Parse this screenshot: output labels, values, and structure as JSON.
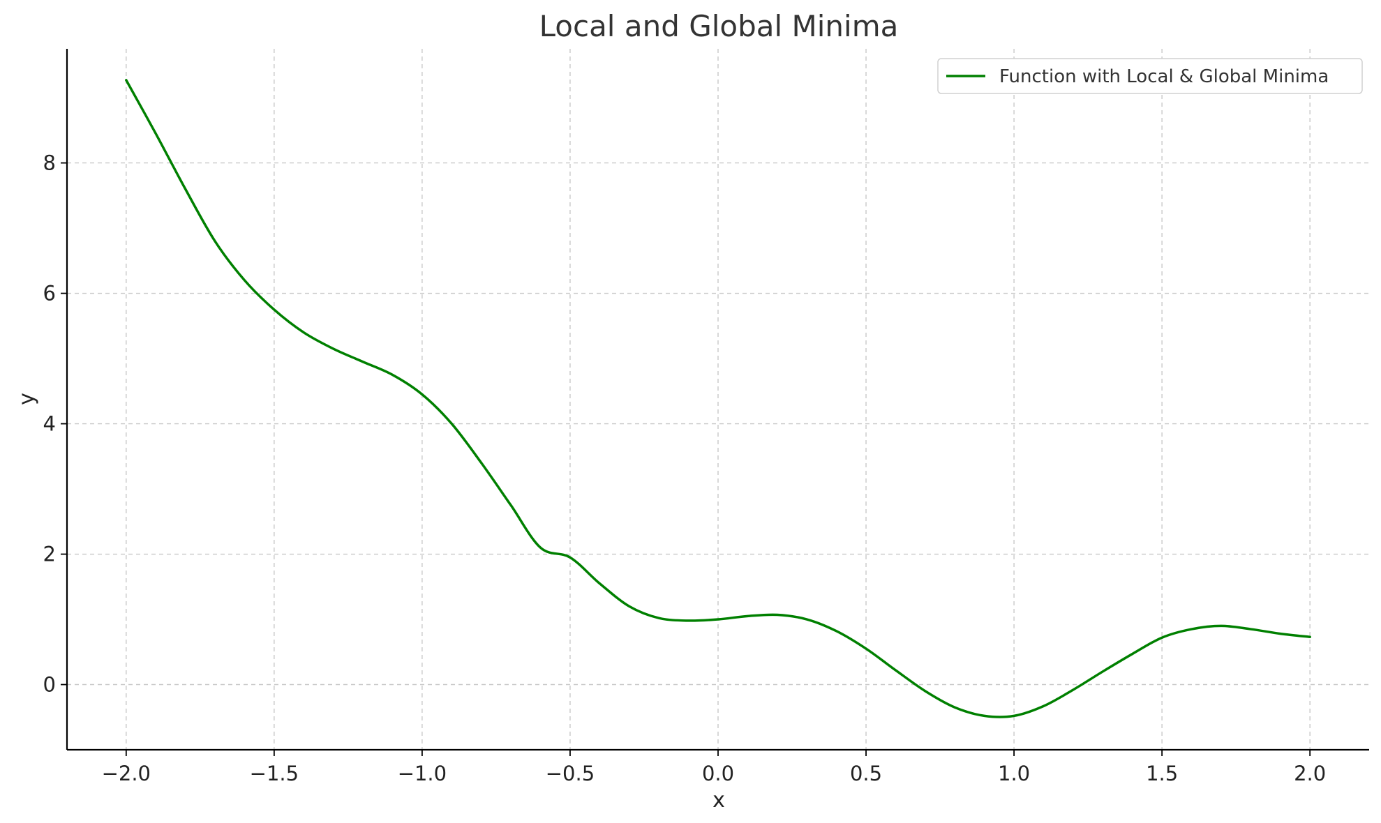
{
  "chart_data": {
    "type": "line",
    "title": "Local and Global Minima",
    "xlabel": "x",
    "ylabel": "y",
    "xlim": [
      -2.2,
      2.2
    ],
    "ylim": [
      -1.0,
      9.75
    ],
    "xticks": [
      -2.0,
      -1.5,
      -1.0,
      -0.5,
      0.0,
      0.5,
      1.0,
      1.5,
      2.0
    ],
    "xtick_labels": [
      "−2.0",
      "−1.5",
      "−1.0",
      "−0.5",
      "0.0",
      "0.5",
      "1.0",
      "1.5",
      "2.0"
    ],
    "yticks": [
      0,
      2,
      4,
      6,
      8
    ],
    "ytick_labels": [
      "0",
      "2",
      "4",
      "6",
      "8"
    ],
    "grid": true,
    "legend_position": "top-right",
    "series": [
      {
        "name": "Function with Local & Global Minima",
        "color": "#008000",
        "x": [
          -2.0,
          -1.9,
          -1.8,
          -1.7,
          -1.6,
          -1.5,
          -1.4,
          -1.3,
          -1.2,
          -1.1,
          -1.0,
          -0.9,
          -0.8,
          -0.7,
          -0.6,
          -0.5,
          -0.4,
          -0.3,
          -0.2,
          -0.1,
          0.0,
          0.1,
          0.2,
          0.3,
          0.4,
          0.5,
          0.6,
          0.7,
          0.8,
          0.9,
          1.0,
          1.1,
          1.2,
          1.3,
          1.4,
          1.5,
          1.6,
          1.7,
          1.8,
          1.9,
          2.0
        ],
        "y": [
          9.27,
          8.45,
          7.6,
          6.8,
          6.2,
          5.75,
          5.4,
          5.15,
          4.95,
          4.75,
          4.45,
          4.0,
          3.4,
          2.75,
          2.1,
          1.95,
          1.55,
          1.2,
          1.02,
          0.98,
          1.0,
          1.05,
          1.07,
          1.0,
          0.82,
          0.55,
          0.22,
          -0.1,
          -0.35,
          -0.48,
          -0.48,
          -0.33,
          -0.08,
          0.2,
          0.47,
          0.72,
          0.85,
          0.9,
          0.85,
          0.78,
          0.73
        ]
      }
    ]
  }
}
